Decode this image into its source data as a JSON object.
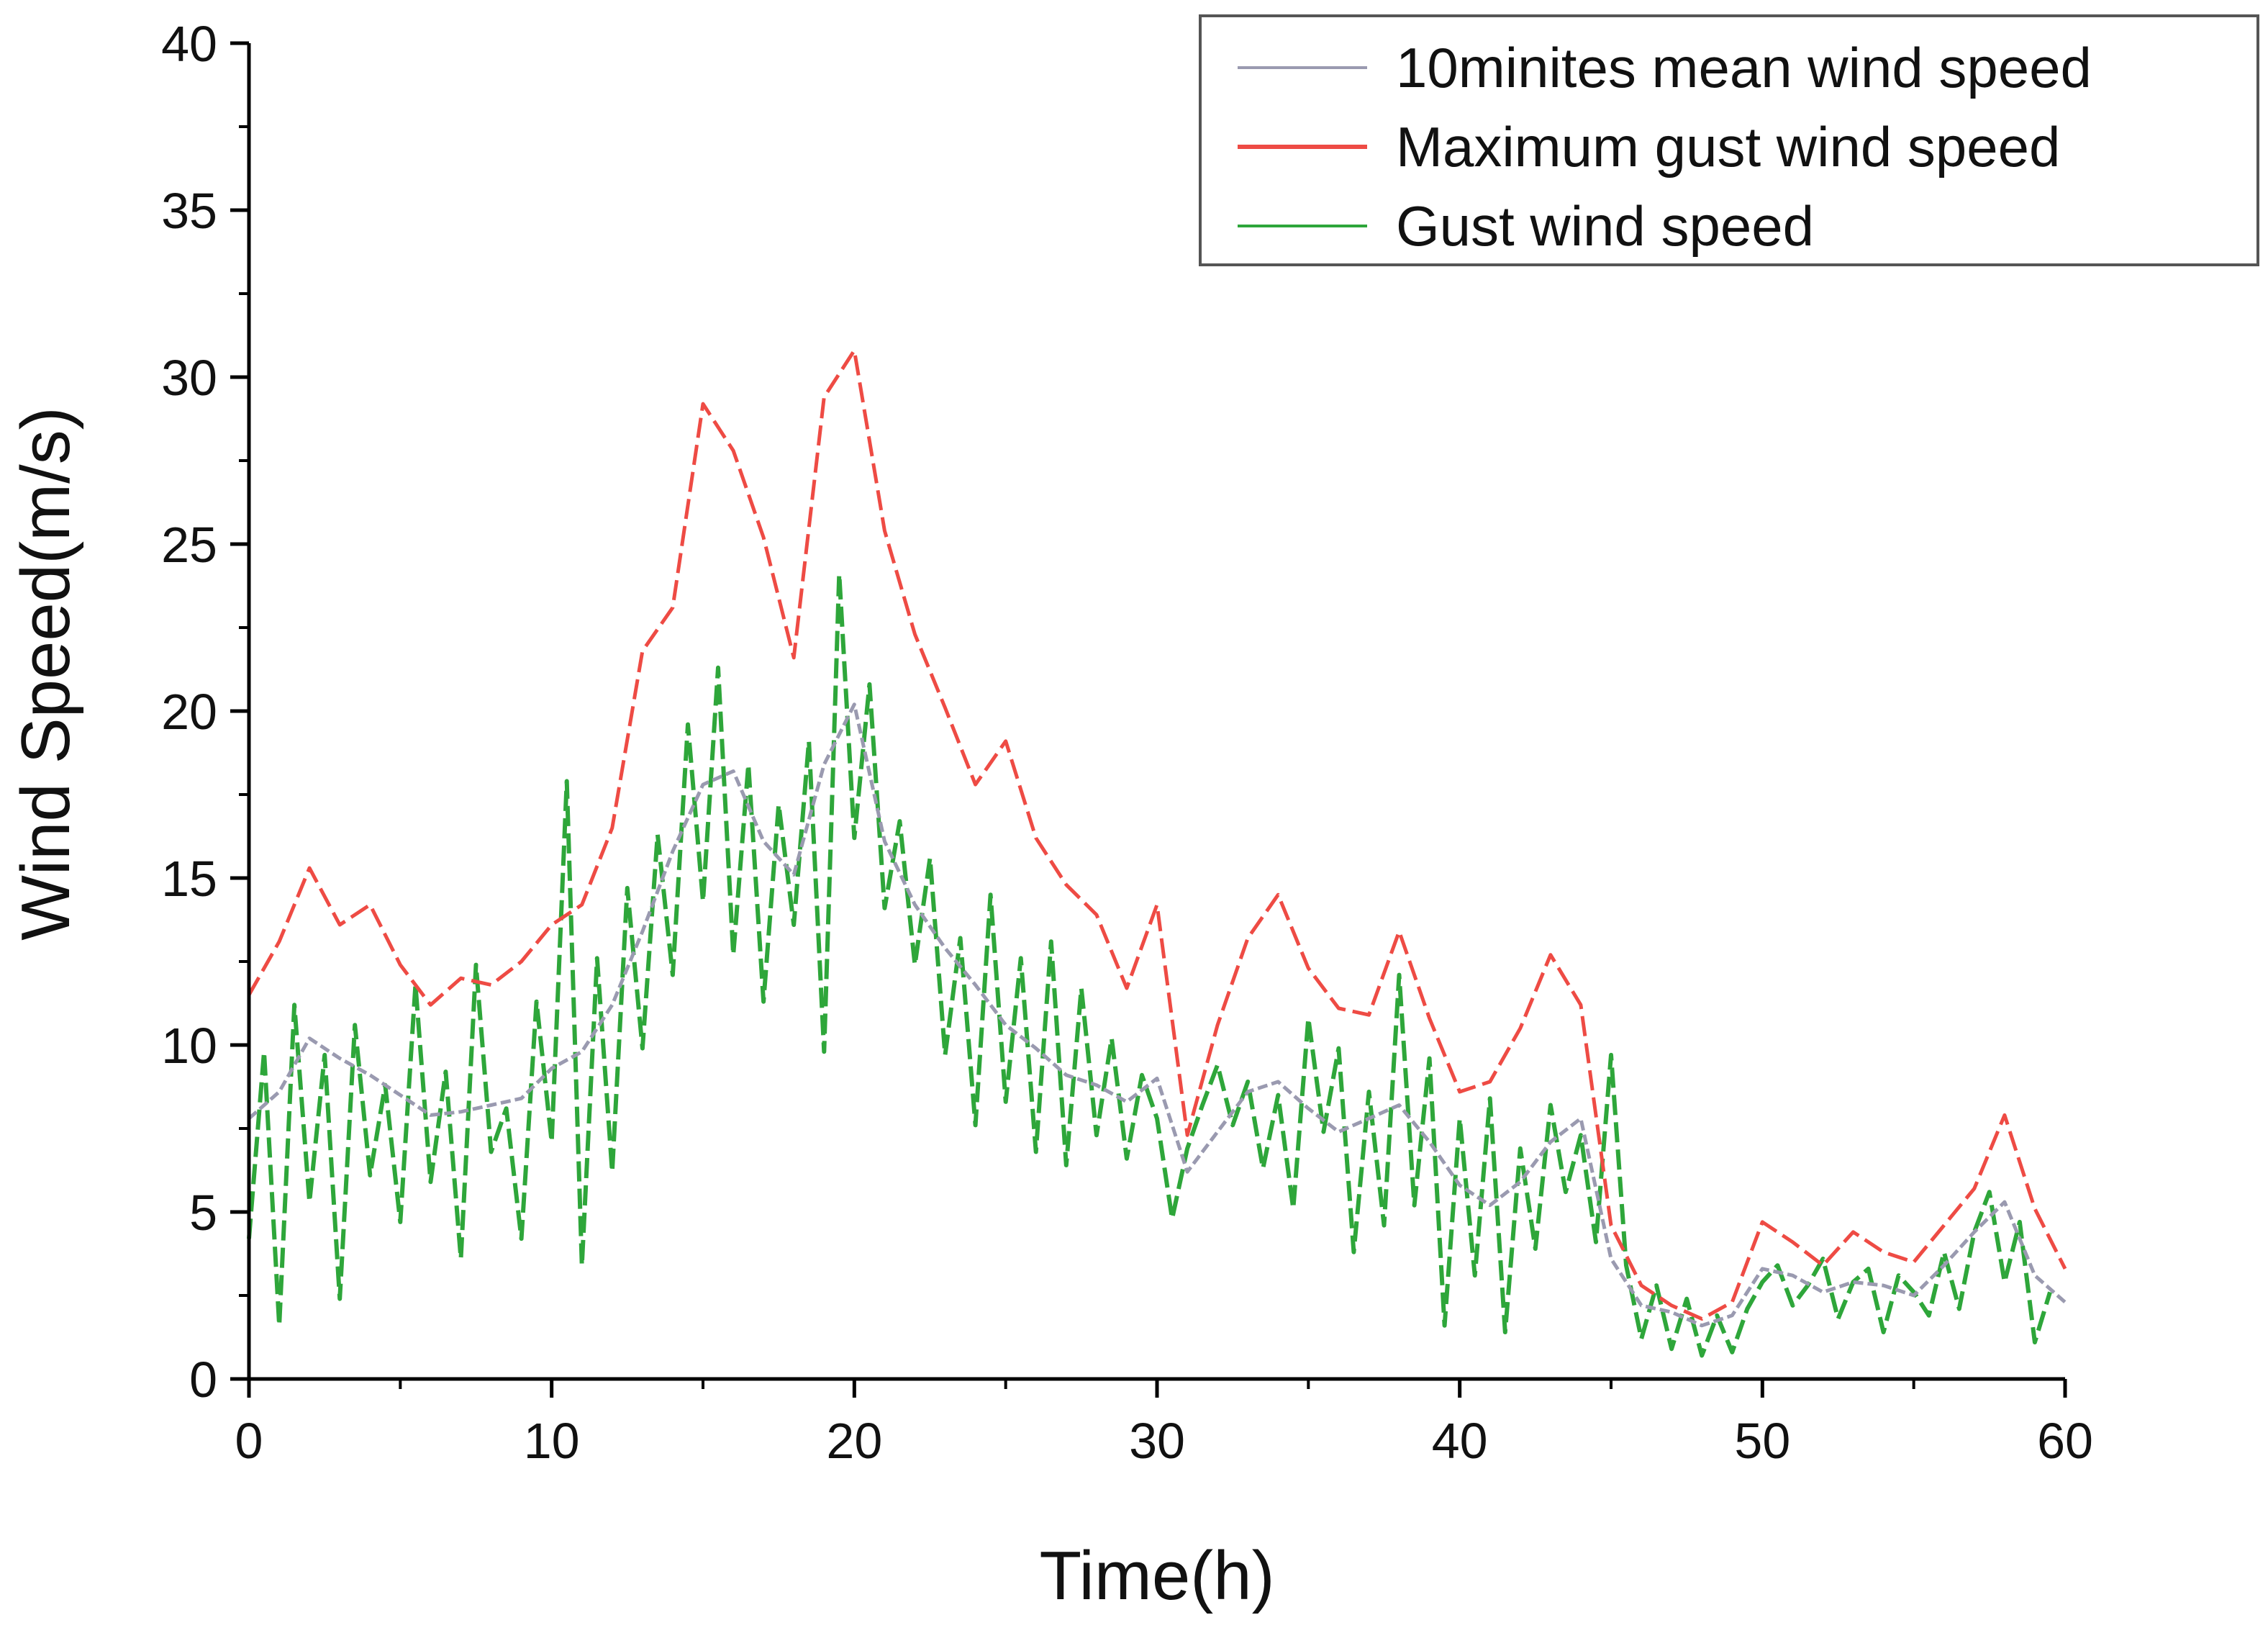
{
  "chart_data": {
    "type": "line",
    "title": "",
    "xlabel": "Time(h)",
    "ylabel": "Wind Speed(m/s)",
    "xlim": [
      0,
      60
    ],
    "ylim": [
      0,
      40
    ],
    "xticks": [
      0,
      10,
      20,
      30,
      40,
      50,
      60
    ],
    "yticks": [
      0,
      5,
      10,
      15,
      20,
      25,
      30,
      35,
      40
    ],
    "grid": false,
    "legend_position": "top-right",
    "series": [
      {
        "name": "10minites mean wind speed",
        "color": "#9a9ab0",
        "x": [
          0,
          1,
          2,
          3,
          4,
          5,
          6,
          7,
          8,
          9,
          10,
          11,
          12,
          13,
          14,
          15,
          16,
          17,
          18,
          19,
          20,
          21,
          22,
          23,
          24,
          25,
          26,
          27,
          28,
          29,
          30,
          31,
          32,
          33,
          34,
          35,
          36,
          37,
          38,
          39,
          40,
          41,
          42,
          43,
          44,
          45,
          46,
          47,
          48,
          49,
          50,
          51,
          52,
          53,
          54,
          55,
          56,
          57,
          58,
          59,
          60
        ],
        "values": [
          7.8,
          8.6,
          10.2,
          9.6,
          9.1,
          8.5,
          7.9,
          8.0,
          8.2,
          8.4,
          9.3,
          9.8,
          11.2,
          13.4,
          15.8,
          17.8,
          18.2,
          16.1,
          15.1,
          18.4,
          20.2,
          16.1,
          14.2,
          12.9,
          11.8,
          10.6,
          9.9,
          9.1,
          8.8,
          8.3,
          9.0,
          6.2,
          7.4,
          8.6,
          8.9,
          8.1,
          7.4,
          7.8,
          8.2,
          7.1,
          5.8,
          5.2,
          5.9,
          7.1,
          7.8,
          3.6,
          2.2,
          2.0,
          1.6,
          1.9,
          3.3,
          3.1,
          2.6,
          2.9,
          2.8,
          2.5,
          3.4,
          4.4,
          5.3,
          3.1,
          2.3
        ]
      },
      {
        "name": "Maximum gust wind speed",
        "color": "#ee4b44",
        "x": [
          0,
          1,
          2,
          3,
          4,
          5,
          6,
          7,
          8,
          9,
          10,
          11,
          12,
          13,
          14,
          15,
          16,
          17,
          18,
          19,
          20,
          21,
          22,
          23,
          24,
          25,
          26,
          27,
          28,
          29,
          30,
          31,
          32,
          33,
          34,
          35,
          36,
          37,
          38,
          39,
          40,
          41,
          42,
          43,
          44,
          45,
          46,
          47,
          48,
          49,
          50,
          51,
          52,
          53,
          54,
          55,
          56,
          57,
          58,
          59,
          60
        ],
        "values": [
          11.5,
          13.1,
          15.3,
          13.6,
          14.2,
          12.4,
          11.2,
          12.0,
          11.8,
          12.5,
          13.6,
          14.2,
          16.5,
          21.8,
          23.1,
          29.2,
          27.8,
          25.2,
          21.6,
          29.4,
          30.8,
          25.4,
          22.3,
          20.1,
          17.8,
          19.1,
          16.2,
          14.8,
          13.9,
          11.7,
          14.2,
          7.3,
          10.6,
          13.2,
          14.5,
          12.3,
          11.1,
          10.9,
          13.4,
          10.8,
          8.6,
          8.9,
          10.5,
          12.7,
          11.2,
          4.6,
          2.8,
          2.2,
          1.8,
          2.3,
          4.7,
          4.1,
          3.4,
          4.4,
          3.8,
          3.5,
          4.6,
          5.7,
          7.9,
          5.1,
          3.3
        ]
      },
      {
        "name": "Gust wind speed",
        "color": "#2ea63a",
        "x": [
          0,
          0.5,
          1,
          1.5,
          2,
          2.5,
          3,
          3.5,
          4,
          4.5,
          5,
          5.5,
          6,
          6.5,
          7,
          7.5,
          8,
          8.5,
          9,
          9.5,
          10,
          10.5,
          11,
          11.5,
          12,
          12.5,
          13,
          13.5,
          14,
          14.5,
          15,
          15.5,
          16,
          16.5,
          17,
          17.5,
          18,
          18.5,
          19,
          19.5,
          20,
          20.5,
          21,
          21.5,
          22,
          22.5,
          23,
          23.5,
          24,
          24.5,
          25,
          25.5,
          26,
          26.5,
          27,
          27.5,
          28,
          28.5,
          29,
          29.5,
          30,
          30.5,
          31,
          31.5,
          32,
          32.5,
          33,
          33.5,
          34,
          34.5,
          35,
          35.5,
          36,
          36.5,
          37,
          37.5,
          38,
          38.5,
          39,
          39.5,
          40,
          40.5,
          41,
          41.5,
          42,
          42.5,
          43,
          43.5,
          44,
          44.5,
          45,
          45.5,
          46,
          46.5,
          47,
          47.5,
          48,
          48.5,
          49,
          49.5,
          50,
          50.5,
          51,
          51.5,
          52,
          52.5,
          53,
          53.5,
          54,
          54.5,
          55,
          55.5,
          56,
          56.5,
          57,
          57.5,
          58,
          58.5,
          59,
          59.5
        ],
        "values": [
          4.2,
          9.8,
          1.6,
          11.2,
          5.3,
          9.7,
          2.4,
          10.6,
          6.1,
          8.8,
          4.7,
          11.8,
          5.9,
          9.2,
          3.6,
          12.4,
          6.8,
          8.1,
          4.2,
          11.3,
          7.1,
          17.9,
          3.4,
          12.6,
          6.2,
          14.7,
          9.9,
          16.3,
          12.1,
          19.6,
          14.3,
          21.3,
          12.7,
          18.4,
          11.3,
          17.2,
          13.6,
          19.1,
          9.8,
          24.1,
          16.2,
          20.8,
          14.1,
          16.7,
          12.4,
          15.6,
          9.7,
          13.2,
          7.6,
          14.5,
          8.3,
          12.6,
          6.8,
          13.1,
          6.4,
          11.7,
          7.3,
          10.2,
          6.6,
          9.1,
          7.8,
          4.8,
          6.9,
          8.2,
          9.4,
          7.6,
          8.9,
          6.3,
          8.5,
          5.1,
          10.8,
          7.4,
          9.9,
          3.8,
          8.6,
          4.6,
          12.1,
          5.2,
          9.6,
          1.6,
          7.8,
          3.1,
          8.4,
          1.4,
          6.9,
          3.9,
          8.2,
          5.6,
          7.3,
          4.1,
          9.7,
          3.4,
          1.2,
          2.8,
          0.9,
          2.4,
          0.7,
          1.9,
          0.8,
          2.1,
          2.9,
          3.4,
          2.2,
          2.8,
          3.6,
          1.8,
          2.9,
          3.3,
          1.4,
          3.1,
          2.6,
          1.9,
          3.8,
          2.1,
          4.4,
          5.6,
          2.9,
          4.7,
          1.1,
          2.6
        ]
      }
    ]
  }
}
